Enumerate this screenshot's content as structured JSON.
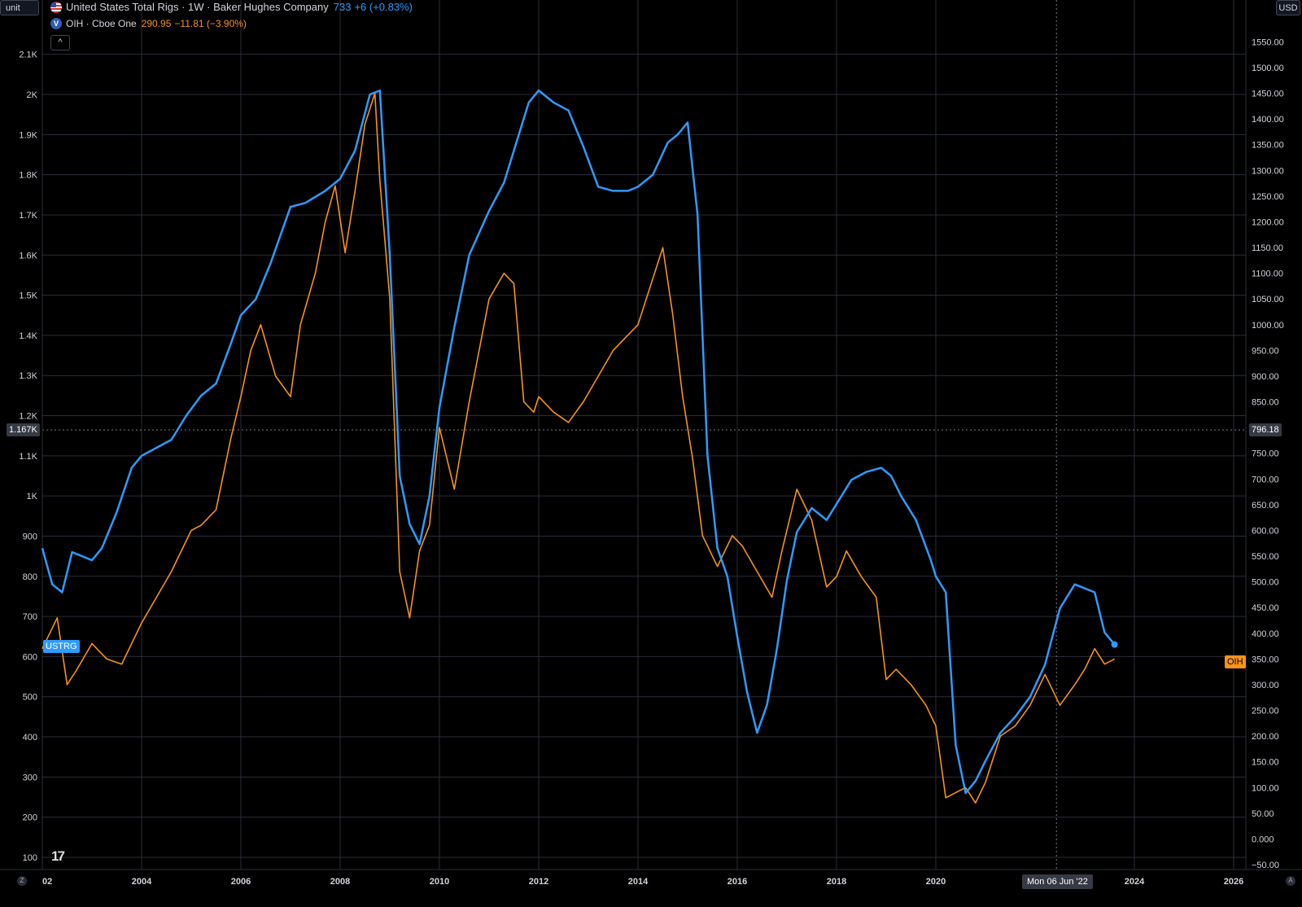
{
  "header": {
    "unit_button": "unit",
    "currency_button": "USD",
    "collapse_symbol": "^",
    "series1": {
      "title": "United States Total Rigs · 1W · Baker Hughes Company",
      "value": "733",
      "change": "+6 (+0.83%)",
      "flag_icon": "us-flag-icon"
    },
    "series2": {
      "title": "OIH · Cboe One",
      "value": "290.95",
      "change": "−11.81 (−3.90%)",
      "icon": "v-logo-icon",
      "icon_letter": "V"
    }
  },
  "tags": {
    "ustrg": "USTRG",
    "oih": "OIH",
    "left_crosshair": "1.167K",
    "right_crosshair": "796.18",
    "date_crosshair": "Mon 06 Jun '22"
  },
  "footer": {
    "logo": "17",
    "z_icon": "Z",
    "a_icon": "A"
  },
  "chart_data": {
    "type": "line",
    "colors": {
      "rigs": "#2e9bff",
      "oih": "#f7931a",
      "background": "#000000",
      "grid": "#2a2e39"
    },
    "x_ticks": [
      "02",
      "2004",
      "2006",
      "2008",
      "2010",
      "2012",
      "2014",
      "2016",
      "2018",
      "2020",
      "Mon 06 Jun '22",
      "2024",
      "2026"
    ],
    "xlim": [
      2002.0,
      2026.0
    ],
    "left_axis": {
      "ticks": [
        "100",
        "200",
        "300",
        "400",
        "500",
        "600",
        "700",
        "800",
        "900",
        "1K",
        "1.1K",
        "1.2K",
        "1.3K",
        "1.4K",
        "1.5K",
        "1.6K",
        "1.7K",
        "1.8K",
        "1.9K",
        "2K",
        "2.1K"
      ],
      "tick_values": [
        100,
        200,
        300,
        400,
        500,
        600,
        700,
        800,
        900,
        1000,
        1100,
        1200,
        1300,
        1400,
        1500,
        1600,
        1700,
        1800,
        1900,
        2000,
        2100
      ],
      "ylim": [
        100,
        2100
      ]
    },
    "right_axis": {
      "ticks": [
        "−50.00",
        "0.000",
        "50.00",
        "100.00",
        "150.00",
        "200.00",
        "250.00",
        "300.00",
        "350.00",
        "400.00",
        "450.00",
        "500.00",
        "550.00",
        "600.00",
        "650.00",
        "700.00",
        "750.00",
        "800.00",
        "850.00",
        "900.00",
        "950.00",
        "1000.00",
        "1050.00",
        "1100.00",
        "1150.00",
        "1200.00",
        "1250.00",
        "1300.00",
        "1350.00",
        "1400.00",
        "1450.00",
        "1500.00",
        "1550.00"
      ],
      "tick_values": [
        -50,
        0,
        50,
        100,
        150,
        200,
        250,
        300,
        350,
        400,
        450,
        500,
        550,
        600,
        650,
        700,
        750,
        800,
        850,
        900,
        950,
        1000,
        1050,
        1100,
        1150,
        1200,
        1250,
        1300,
        1350,
        1400,
        1450,
        1500,
        1550
      ],
      "ylim": [
        -50,
        1550
      ]
    },
    "series": [
      {
        "name": "USTRG",
        "axis": "left",
        "x": [
          2002.0,
          2002.2,
          2002.4,
          2002.6,
          2002.8,
          2003.0,
          2003.2,
          2003.5,
          2003.8,
          2004.0,
          2004.3,
          2004.6,
          2004.9,
          2005.2,
          2005.5,
          2005.8,
          2006.0,
          2006.3,
          2006.6,
          2007.0,
          2007.3,
          2007.7,
          2008.0,
          2008.3,
          2008.6,
          2008.8,
          2009.0,
          2009.2,
          2009.4,
          2009.6,
          2009.8,
          2010.0,
          2010.3,
          2010.6,
          2011.0,
          2011.3,
          2011.6,
          2011.8,
          2012.0,
          2012.3,
          2012.6,
          2012.9,
          2013.2,
          2013.5,
          2013.8,
          2014.0,
          2014.3,
          2014.6,
          2014.8,
          2015.0,
          2015.2,
          2015.4,
          2015.6,
          2015.8,
          2016.0,
          2016.2,
          2016.4,
          2016.6,
          2016.8,
          2017.0,
          2017.2,
          2017.5,
          2017.8,
          2018.0,
          2018.3,
          2018.6,
          2018.9,
          2019.1,
          2019.3,
          2019.6,
          2019.9,
          2020.0,
          2020.2,
          2020.4,
          2020.6,
          2020.8,
          2021.0,
          2021.3,
          2021.6,
          2021.9,
          2022.2,
          2022.5,
          2022.8,
          2023.0,
          2023.2,
          2023.4,
          2023.6
        ],
        "values": [
          870,
          780,
          760,
          860,
          850,
          840,
          870,
          960,
          1070,
          1100,
          1120,
          1140,
          1200,
          1250,
          1280,
          1380,
          1450,
          1490,
          1580,
          1720,
          1730,
          1760,
          1790,
          1860,
          2000,
          2010,
          1600,
          1050,
          930,
          880,
          1000,
          1220,
          1420,
          1600,
          1710,
          1780,
          1900,
          1980,
          2010,
          1980,
          1960,
          1870,
          1770,
          1760,
          1760,
          1770,
          1800,
          1880,
          1900,
          1930,
          1700,
          1100,
          870,
          800,
          650,
          510,
          410,
          480,
          620,
          790,
          910,
          970,
          940,
          980,
          1040,
          1060,
          1070,
          1050,
          1000,
          940,
          840,
          800,
          760,
          380,
          260,
          290,
          340,
          410,
          450,
          500,
          580,
          720,
          780,
          770,
          760,
          660,
          630
        ]
      },
      {
        "name": "OIH",
        "axis": "right",
        "x": [
          2002.0,
          2002.3,
          2002.5,
          2002.7,
          2003.0,
          2003.3,
          2003.6,
          2004.0,
          2004.3,
          2004.6,
          2005.0,
          2005.2,
          2005.5,
          2005.8,
          2006.0,
          2006.2,
          2006.4,
          2006.7,
          2007.0,
          2007.2,
          2007.5,
          2007.7,
          2007.9,
          2008.1,
          2008.3,
          2008.5,
          2008.7,
          2008.8,
          2009.0,
          2009.2,
          2009.4,
          2009.6,
          2009.8,
          2010.0,
          2010.3,
          2010.6,
          2011.0,
          2011.3,
          2011.5,
          2011.7,
          2011.9,
          2012.0,
          2012.3,
          2012.6,
          2012.9,
          2013.2,
          2013.5,
          2013.8,
          2014.0,
          2014.3,
          2014.5,
          2014.7,
          2014.9,
          2015.1,
          2015.3,
          2015.6,
          2015.9,
          2016.1,
          2016.4,
          2016.7,
          2016.9,
          2017.2,
          2017.5,
          2017.8,
          2018.0,
          2018.2,
          2018.5,
          2018.8,
          2019.0,
          2019.2,
          2019.5,
          2019.8,
          2020.0,
          2020.2,
          2020.4,
          2020.6,
          2020.8,
          2021.0,
          2021.3,
          2021.6,
          2021.9,
          2022.2,
          2022.5,
          2022.8,
          2023.0,
          2023.2,
          2023.4,
          2023.6
        ],
        "values": [
          370,
          430,
          300,
          330,
          380,
          350,
          340,
          420,
          470,
          520,
          600,
          610,
          640,
          780,
          860,
          950,
          1000,
          900,
          860,
          1000,
          1100,
          1200,
          1270,
          1140,
          1260,
          1390,
          1450,
          1280,
          1050,
          520,
          430,
          560,
          610,
          800,
          680,
          850,
          1050,
          1100,
          1080,
          850,
          830,
          860,
          830,
          810,
          850,
          900,
          950,
          980,
          1000,
          1090,
          1150,
          1020,
          860,
          740,
          590,
          530,
          590,
          570,
          520,
          470,
          560,
          680,
          620,
          490,
          510,
          560,
          510,
          470,
          310,
          330,
          300,
          260,
          220,
          80,
          90,
          100,
          70,
          110,
          200,
          220,
          260,
          320,
          260,
          300,
          330,
          370,
          340,
          350
        ]
      }
    ],
    "crosshair": {
      "x": 2022.43,
      "left_value": "1.167K",
      "right_value": "796.18"
    }
  }
}
